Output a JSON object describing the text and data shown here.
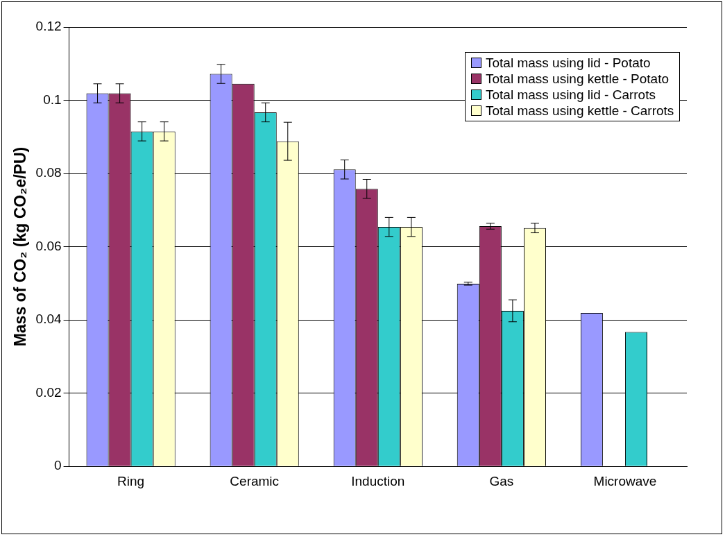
{
  "chart_data": {
    "type": "bar",
    "ylabel": "Mass of CO₂ (kg CO₂e/PU)",
    "categories": [
      "Ring",
      "Ceramic",
      "Induction",
      "Gas",
      "Microwave"
    ],
    "series": [
      {
        "name": "Total mass using lid - Potato",
        "color": "#9999ff",
        "values": [
          0.1019,
          0.1072,
          0.0811,
          0.0499,
          0.0419
        ],
        "errors": [
          0.0026,
          0.0026,
          0.0026,
          0.0004,
          null
        ]
      },
      {
        "name": "Total mass using kettle - Potato",
        "color": "#993366",
        "values": [
          0.1019,
          0.1045,
          0.0758,
          0.0656,
          null
        ],
        "errors": [
          0.0026,
          null,
          0.0026,
          0.0008,
          null
        ]
      },
      {
        "name": "Total mass using lid - Carrots",
        "color": "#33cccc",
        "values": [
          0.0915,
          0.0967,
          0.0654,
          0.0425,
          0.0367
        ],
        "errors": [
          0.0026,
          0.0026,
          0.0026,
          0.003,
          null
        ]
      },
      {
        "name": "Total mass using kettle - Carrots",
        "color": "#ffffcc",
        "values": [
          0.0915,
          0.0888,
          0.0654,
          0.0651,
          null
        ],
        "errors": [
          0.0026,
          0.0052,
          0.0026,
          0.0013,
          null
        ]
      }
    ],
    "ylim": [
      0,
      0.12
    ],
    "yticks": [
      0,
      0.02,
      0.04,
      0.06,
      0.08,
      0.1,
      0.12
    ],
    "grid": "y",
    "legend": "top right"
  }
}
